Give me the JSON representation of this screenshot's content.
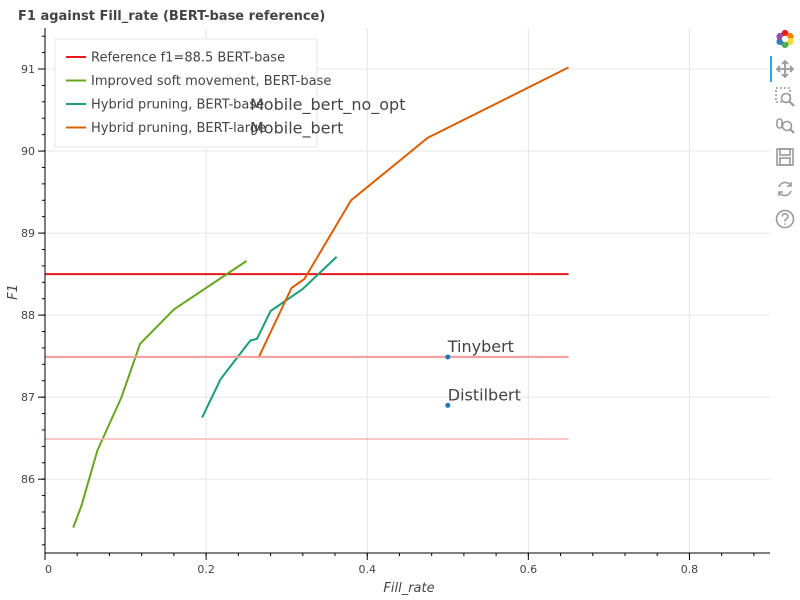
{
  "chart_data": {
    "type": "line",
    "title": "F1 against Fill_rate (BERT-base reference)",
    "xlabel": "Fill_rate",
    "ylabel": "F1",
    "xlim": [
      0,
      0.9
    ],
    "ylim": [
      85.1,
      91.5
    ],
    "x_ticks": [
      0,
      0.2,
      0.4,
      0.6,
      0.8
    ],
    "x_tick_labels": [
      "0",
      "0.2",
      "0.4",
      "0.6",
      "0.8"
    ],
    "y_ticks": [
      86,
      87,
      88,
      89,
      90,
      91
    ],
    "y_tick_labels": [
      "86",
      "87",
      "88",
      "89",
      "90",
      "91"
    ],
    "grid": true,
    "legend_position": "top-left",
    "series": [
      {
        "name": "Reference f1=88.5 BERT-base",
        "color": "#e41a1c",
        "width": 2,
        "in_legend": true,
        "x": [
          0,
          0.65
        ],
        "y": [
          88.5,
          88.5
        ]
      },
      {
        "name": "Improved soft movement, BERT-base",
        "color": "#66a61e",
        "width": 2,
        "in_legend": true,
        "x": [
          0.035,
          0.045,
          0.065,
          0.095,
          0.118,
          0.16,
          0.25
        ],
        "y": [
          85.41,
          85.67,
          86.35,
          87.0,
          87.65,
          88.07,
          88.66
        ]
      },
      {
        "name": "Hybrid pruning, BERT-base",
        "color": "#1b9e77",
        "width": 2,
        "in_legend": true,
        "x": [
          0.195,
          0.218,
          0.255,
          0.263,
          0.28,
          0.32,
          0.362
        ],
        "y": [
          86.75,
          87.22,
          87.69,
          87.71,
          88.05,
          88.32,
          88.71
        ]
      },
      {
        "name": "Hybrid pruning, BERT-large",
        "color": "#d95f02",
        "width": 2,
        "in_legend": true,
        "x": [
          0.265,
          0.306,
          0.322,
          0.38,
          0.475,
          0.65
        ],
        "y": [
          87.48,
          88.33,
          88.44,
          89.4,
          90.16,
          91.02
        ]
      },
      {
        "name": "",
        "color": "#fb9a99",
        "width": 2,
        "in_legend": false,
        "x": [
          0,
          0.65
        ],
        "y": [
          87.49,
          87.49
        ]
      },
      {
        "name": "",
        "color": "#fbb4ae",
        "width": 1.5,
        "in_legend": false,
        "x": [
          0,
          0.65
        ],
        "y": [
          86.49,
          86.49
        ]
      }
    ],
    "points": [
      {
        "label": "Tinybert",
        "x": 0.5,
        "y": 87.49,
        "color": "#1f77b4"
      },
      {
        "label": "Distilbert",
        "x": 0.5,
        "y": 86.9,
        "color": "#1f77b4"
      }
    ],
    "annotations": [
      {
        "text": "Mobile_bert_no_opt",
        "legend_row": 2
      },
      {
        "text": "Mobile_bert",
        "legend_row": 3
      }
    ]
  },
  "toolbar": {
    "tools": [
      {
        "name": "bokeh-logo",
        "title": ""
      },
      {
        "name": "pan-tool",
        "title": "Pan"
      },
      {
        "name": "box-zoom-tool",
        "title": "Box Zoom"
      },
      {
        "name": "wheel-zoom-tool",
        "title": "Wheel Zoom"
      },
      {
        "name": "save-tool",
        "title": "Save"
      },
      {
        "name": "reset-tool",
        "title": "Reset"
      },
      {
        "name": "help-tool",
        "title": "Help"
      }
    ]
  }
}
